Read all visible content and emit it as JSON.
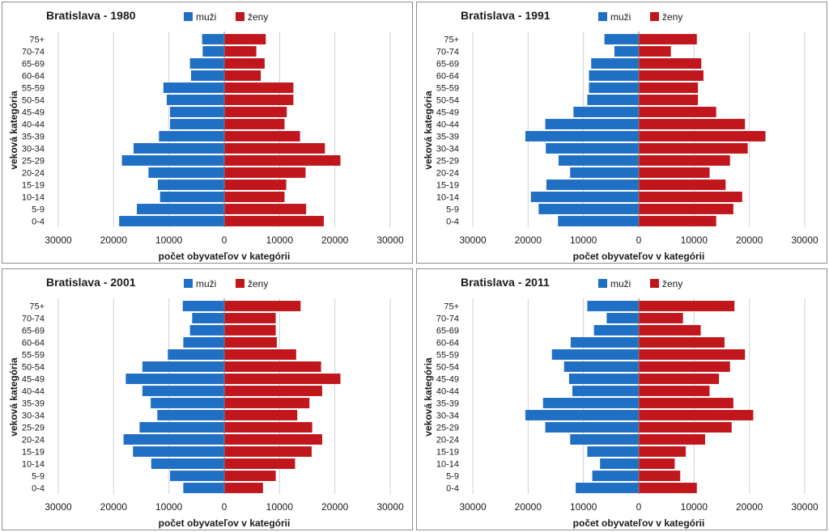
{
  "colors": {
    "male": "#1f6fc5",
    "female": "#c0161c",
    "grid": "#d0d0d0",
    "axis": "#7f7f7f"
  },
  "chart_data": [
    {
      "type": "bar",
      "title": "Bratislava - 1980",
      "legend": [
        "muži",
        "ženy"
      ],
      "categories": [
        "0-4",
        "5-9",
        "10-14",
        "15-19",
        "20-24",
        "25-29",
        "30-34",
        "35-39",
        "40-44",
        "45-49",
        "50-54",
        "55-59",
        "60-64",
        "65-69",
        "70-74",
        "75+"
      ],
      "series": [
        {
          "name": "muži",
          "values": [
            -19000,
            -15800,
            -11600,
            -12000,
            -13700,
            -18500,
            -16400,
            -11800,
            -9800,
            -9800,
            -10400,
            -11000,
            -6000,
            -6200,
            -3900,
            -4000
          ]
        },
        {
          "name": "ženy",
          "values": [
            18000,
            14800,
            10900,
            11200,
            14700,
            21000,
            18200,
            13700,
            10900,
            11300,
            12500,
            12500,
            6600,
            7300,
            5800,
            7500
          ]
        }
      ],
      "xlabel": "počet obyvateľov v kategórii",
      "ylabel": "veková kategória",
      "xlim": [
        -30000,
        30000
      ],
      "xticks": [
        "30000",
        "20000",
        "10000",
        "0",
        "10000",
        "20000",
        "30000"
      ]
    },
    {
      "type": "bar",
      "title": "Bratislava - 1991",
      "legend": [
        "muži",
        "ženy"
      ],
      "categories": [
        "0-4",
        "5-9",
        "10-14",
        "15-19",
        "20-24",
        "25-29",
        "30-34",
        "35-39",
        "40-44",
        "45-49",
        "50-54",
        "55-59",
        "60-64",
        "65-69",
        "70-74",
        "75+"
      ],
      "series": [
        {
          "name": "muži",
          "values": [
            -14600,
            -18100,
            -19500,
            -16700,
            -12400,
            -14500,
            -16800,
            -20500,
            -16900,
            -11800,
            -9300,
            -9000,
            -9000,
            -8600,
            -4400,
            -6200
          ]
        },
        {
          "name": "ženy",
          "values": [
            14000,
            17100,
            18700,
            15700,
            12800,
            16500,
            19700,
            22900,
            19200,
            14000,
            10700,
            10700,
            11700,
            11300,
            5800,
            10500
          ]
        }
      ],
      "xlabel": "počet obyvateľov v kategórii",
      "ylabel": "veková kategória",
      "xlim": [
        -30000,
        30000
      ],
      "xticks": [
        "30000",
        "20000",
        "10000",
        "0",
        "10000",
        "20000",
        "30000"
      ]
    },
    {
      "type": "bar",
      "title": "Bratislava - 2001",
      "legend": [
        "muži",
        "ženy"
      ],
      "categories": [
        "0-4",
        "5-9",
        "10-14",
        "15-19",
        "20-24",
        "25-29",
        "30-34",
        "35-39",
        "40-44",
        "45-49",
        "50-54",
        "55-59",
        "60-64",
        "65-69",
        "70-74",
        "75+"
      ],
      "series": [
        {
          "name": "muži",
          "values": [
            -7400,
            -9800,
            -13200,
            -16500,
            -18200,
            -15300,
            -12100,
            -13300,
            -14800,
            -17800,
            -14800,
            -10200,
            -7400,
            -6200,
            -5800,
            -7500
          ]
        },
        {
          "name": "ženy",
          "values": [
            7000,
            9300,
            12800,
            15800,
            17700,
            15900,
            13200,
            15400,
            17700,
            21000,
            17500,
            13000,
            9500,
            9300,
            9300,
            13800
          ]
        }
      ],
      "xlabel": "počet obyvateľov v kategórii",
      "ylabel": "veková kategória",
      "xlim": [
        -30000,
        30000
      ],
      "xticks": [
        "30000",
        "20000",
        "10000",
        "0",
        "10000",
        "20000",
        "30000"
      ]
    },
    {
      "type": "bar",
      "title": "Bratislava - 2011",
      "legend": [
        "muži",
        "ženy"
      ],
      "categories": [
        "0-4",
        "5-9",
        "10-14",
        "15-19",
        "20-24",
        "25-29",
        "30-34",
        "35-39",
        "40-44",
        "45-49",
        "50-54",
        "55-59",
        "60-64",
        "65-69",
        "70-74",
        "75+"
      ],
      "series": [
        {
          "name": "muži",
          "values": [
            -11400,
            -8400,
            -7000,
            -9300,
            -12400,
            -16900,
            -20500,
            -17300,
            -12000,
            -12600,
            -13500,
            -15700,
            -12300,
            -8100,
            -5800,
            -9300
          ]
        },
        {
          "name": "ženy",
          "values": [
            10500,
            7500,
            6500,
            8500,
            12000,
            16800,
            20700,
            17100,
            12800,
            14500,
            16500,
            19200,
            15500,
            11200,
            8000,
            17300
          ]
        }
      ],
      "xlabel": "počet obyvateľov v kategórii",
      "ylabel": "veková kategória",
      "xlim": [
        -30000,
        30000
      ],
      "xticks": [
        "30000",
        "20000",
        "10000",
        "0",
        "10000",
        "20000",
        "30000"
      ]
    }
  ]
}
